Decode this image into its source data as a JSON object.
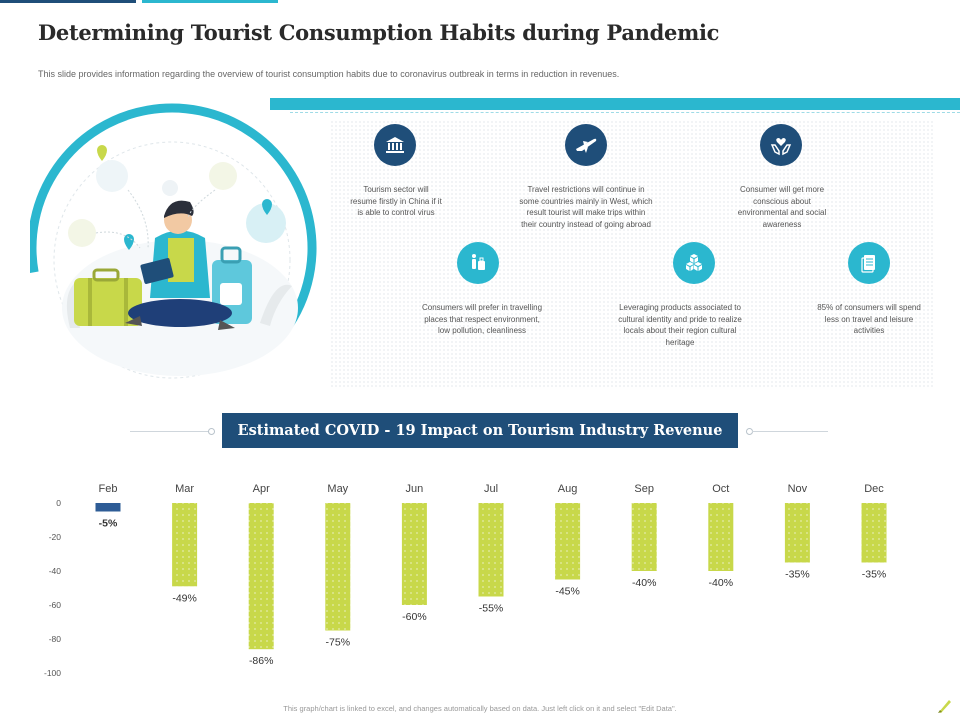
{
  "header": {
    "title": "Determining Tourist Consumption Habits during Pandemic",
    "subtitle": "This slide provides information regarding the overview of tourist consumption habits due to coronavirus outbreak in terms in reduction in revenues."
  },
  "features": [
    {
      "icon": "museum-icon",
      "text": "Tourism sector will resume firstly in China if it is able to control virus"
    },
    {
      "icon": "airplane-icon",
      "text": "Travel restrictions will continue in some countries mainly in West, which result tourist will make trips within their country instead of going abroad"
    },
    {
      "icon": "heart-hands-icon",
      "text": "Consumer will get more conscious about environmental and social awareness"
    },
    {
      "icon": "traveller-luggage-icon",
      "text": "Consumers will prefer in travelling places that respect environment, low pollution, cleanliness"
    },
    {
      "icon": "boxes-icon",
      "text": "Leveraging products associated to cultural identity and pride to realize locals about their region cultural heritage"
    },
    {
      "icon": "document-icon",
      "text": "85% of consumers will spend less on travel and leisure activities"
    }
  ],
  "banner": {
    "text": "Estimated  COVID  - 19 Impact  on Tourism Industry  Revenue"
  },
  "footer": {
    "note": "This graph/chart is linked to excel, and changes automatically based on data. Just left click on it and select \"Edit Data\"."
  },
  "colors": {
    "navy": "#1f4e79",
    "cyan": "#2bb7cf",
    "lime": "#c8d84a",
    "text": "#333333"
  },
  "chart_data": {
    "type": "bar",
    "title": "Estimated  COVID  - 19 Impact  on Tourism Industry  Revenue",
    "categories": [
      "Feb",
      "Mar",
      "Apr",
      "May",
      "Jun",
      "Jul",
      "Aug",
      "Sep",
      "Oct",
      "Nov",
      "Dec"
    ],
    "values": [
      -5,
      -49,
      -86,
      -75,
      -60,
      -55,
      -45,
      -40,
      -40,
      -35,
      -35
    ],
    "data_labels": [
      "-5%",
      "-49%",
      "-86%",
      "-75%",
      "-60%",
      "-55%",
      "-45%",
      "-40%",
      "-40%",
      "-35%",
      "-35%"
    ],
    "y_ticks": [
      "0",
      "-20",
      "-40",
      "-60",
      "-80",
      "-100"
    ],
    "ylim": [
      -100,
      0
    ],
    "category_axis": "top",
    "grid": false,
    "bar_colors": [
      "#2e5c96",
      "#c8d84a",
      "#c8d84a",
      "#c8d84a",
      "#c8d84a",
      "#c8d84a",
      "#c8d84a",
      "#c8d84a",
      "#c8d84a",
      "#c8d84a",
      "#c8d84a"
    ]
  }
}
